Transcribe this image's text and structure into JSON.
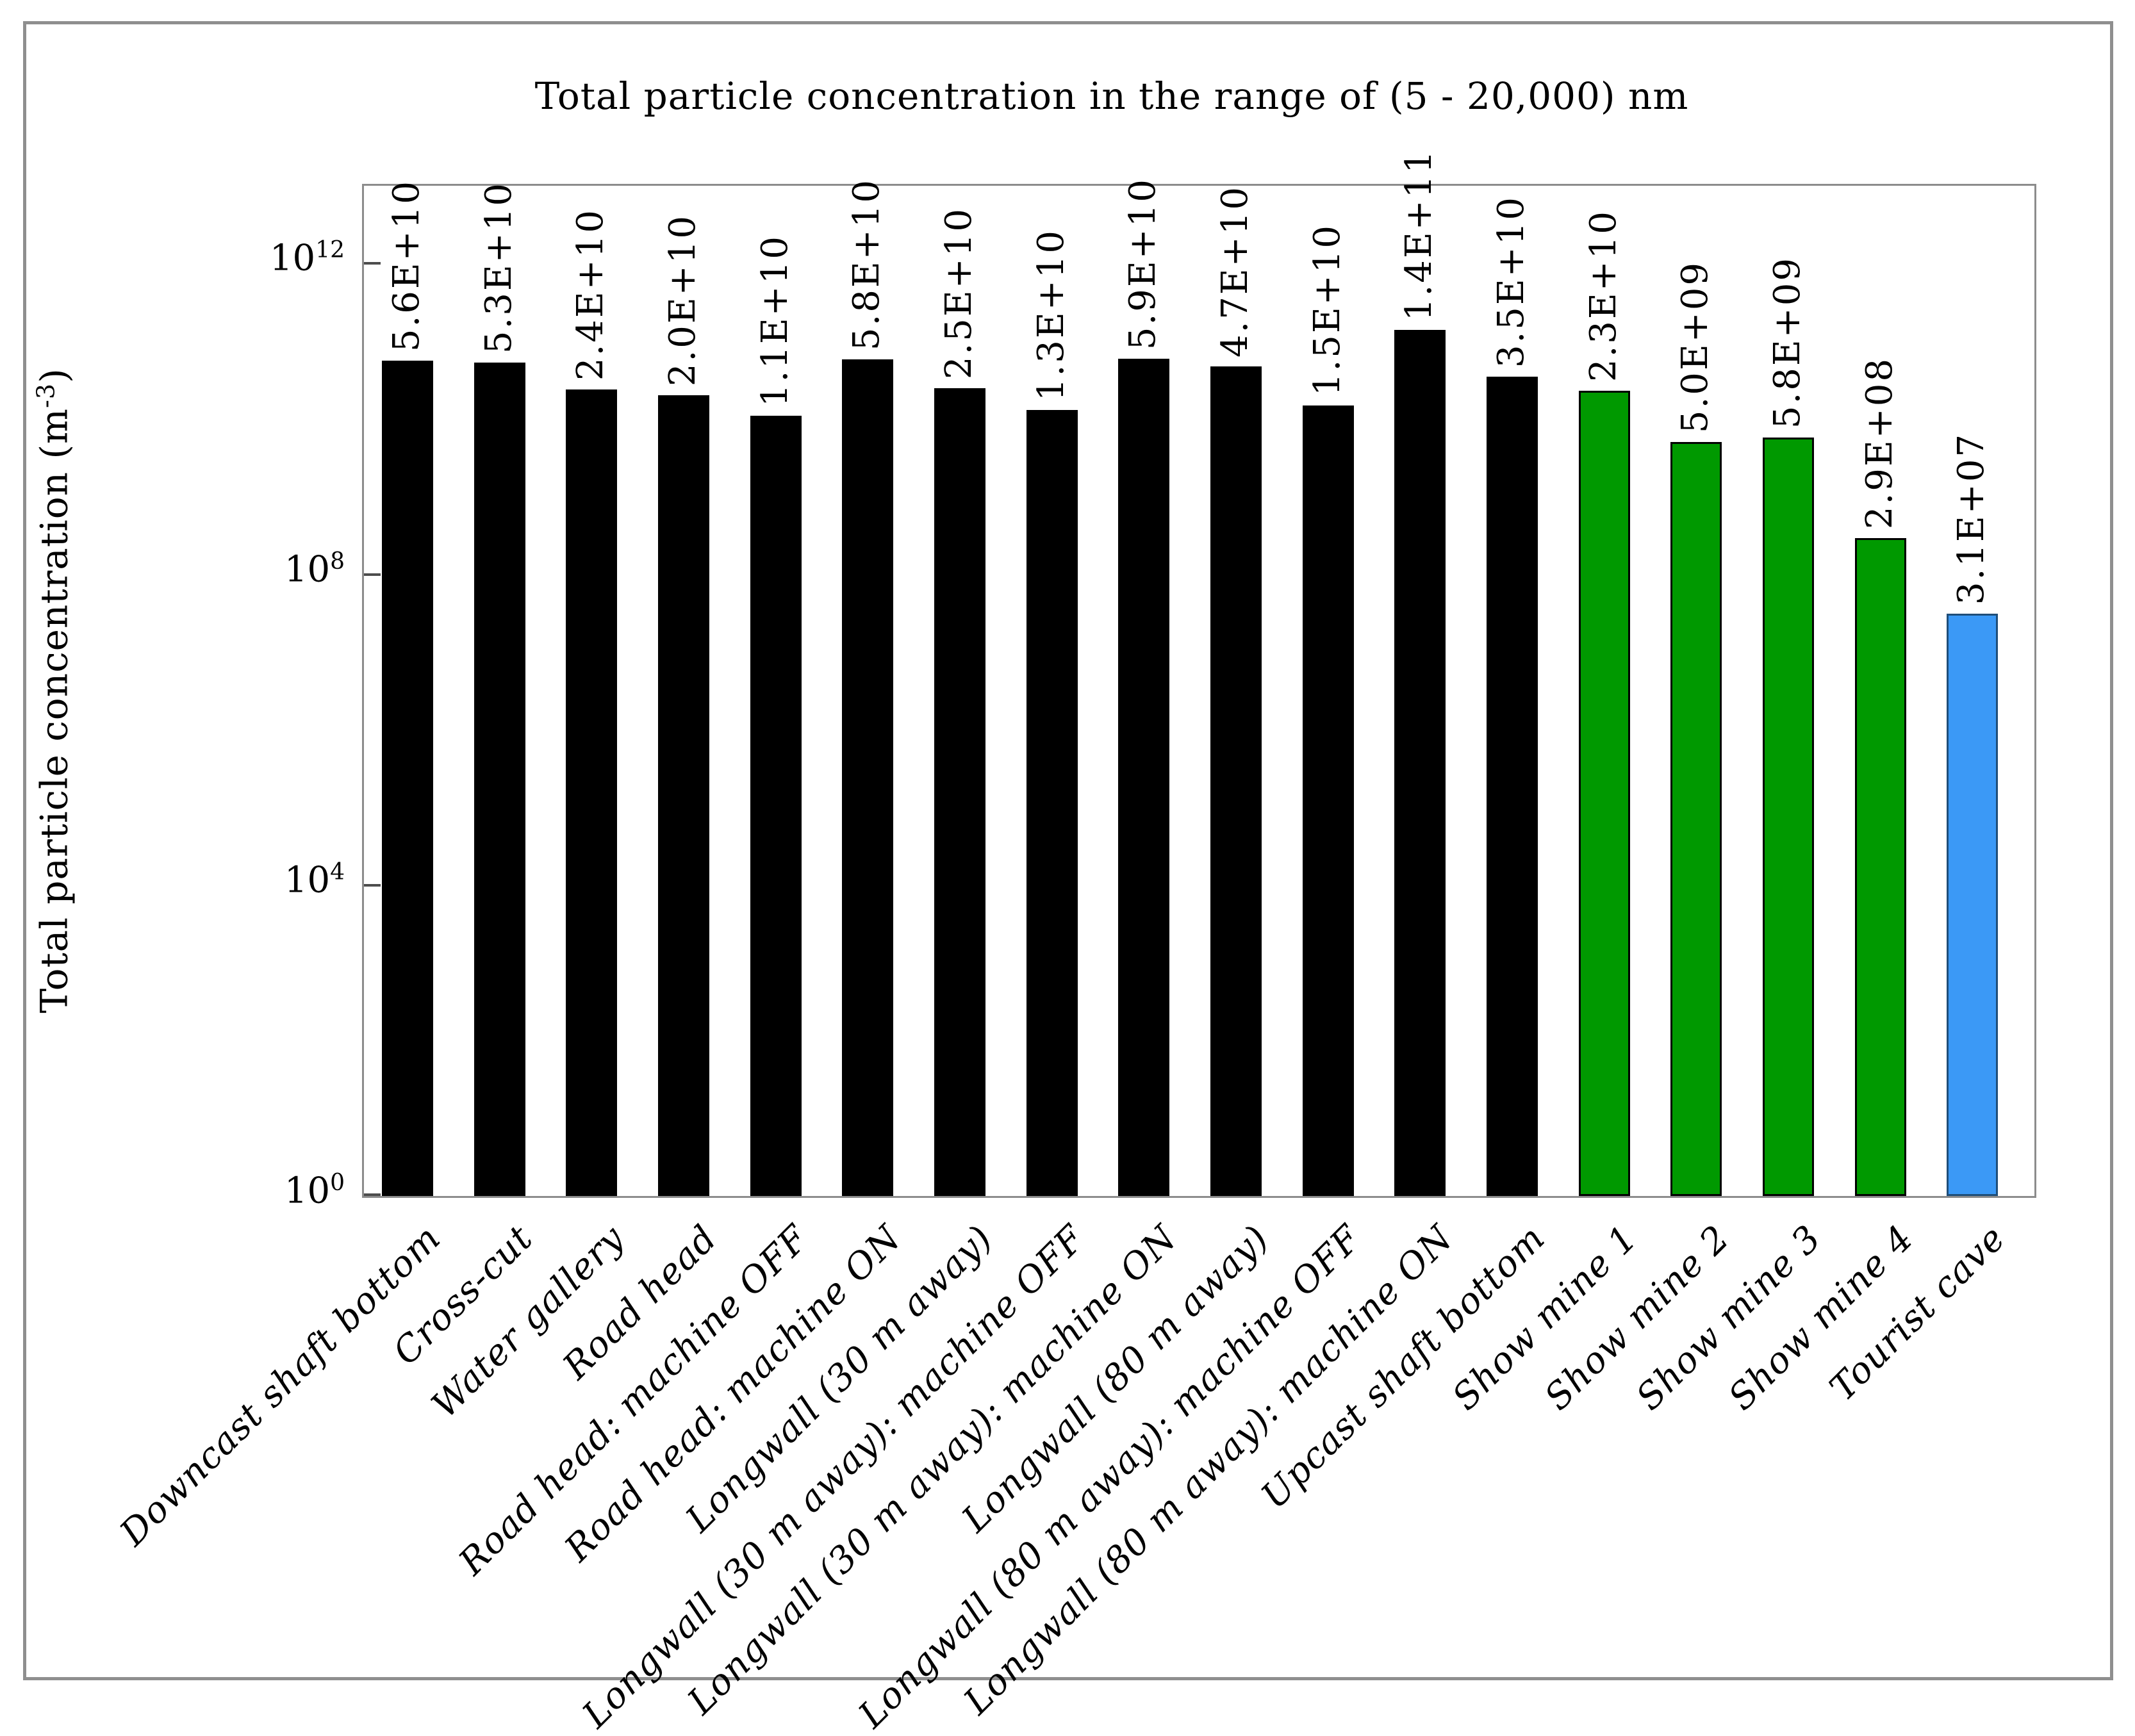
{
  "figure": {
    "background": "#ffffff",
    "frame_color": "#8f8f8f",
    "axis_color": "#8c8c8c",
    "tick_color": "#4d4d4d"
  },
  "chart_data": {
    "type": "bar",
    "title": "Total particle concentration in the range of (5 - 20,000) nm",
    "ylabel": "Total particle concentration (m-3)",
    "ylabel_parts": {
      "prefix": "Total particle concentration (m",
      "sup": "-3",
      "suffix": ")"
    },
    "xlabel": "",
    "grid": false,
    "legend": null,
    "yaxis": {
      "scale": "log",
      "min": 1,
      "max": 10000000000000.0,
      "max_exp": 13,
      "tick_base": "10",
      "tick_exps": [
        12,
        8,
        4,
        0
      ]
    },
    "categories": [
      "Downcast shaft bottom",
      "Cross-cut",
      "Water gallery",
      "Road head",
      "Road head: machine OFF",
      "Road head: machine ON",
      "Longwall (30 m away)",
      "Longwall (30 m away): machine OFF",
      "Longwall (30 m away): machine ON",
      "Longwall (80 m away)",
      "Longwall (80 m away): machine OFF",
      "Longwall (80 m away): machine ON",
      "Upcast shaft bottom",
      "Show mine 1",
      "Show mine 2",
      "Show mine 3",
      "Show mine 4",
      "Tourist cave"
    ],
    "values": [
      56000000000.0,
      53000000000.0,
      24000000000.0,
      20000000000.0,
      11000000000.0,
      58000000000.0,
      25000000000.0,
      13000000000.0,
      59000000000.0,
      47000000000.0,
      15000000000.0,
      140000000000.0,
      35000000000.0,
      23000000000.0,
      5000000000.0,
      5800000000.0,
      290000000.0,
      31000000.0
    ],
    "value_labels": [
      "5.6E+10",
      "5.3E+10",
      "2.4E+10",
      "2.0E+10",
      "1.1E+10",
      "5.8E+10",
      "2.5E+10",
      "1.3E+10",
      "5.9E+10",
      "4.7E+10",
      "1.5E+10",
      "1.4E+11",
      "3.5E+10",
      "2.3E+10",
      "5.0E+09",
      "5.8E+09",
      "2.9E+08",
      "3.1E+07"
    ],
    "bar_colors": [
      "black",
      "black",
      "black",
      "black",
      "black",
      "black",
      "black",
      "black",
      "black",
      "black",
      "black",
      "black",
      "black",
      "green",
      "green",
      "green",
      "green",
      "blue"
    ],
    "palette": {
      "black": {
        "fill": "#000000",
        "border": "#000000"
      },
      "green": {
        "fill": "#009900",
        "border": "#000000"
      },
      "blue": {
        "fill": "#3B99F6",
        "border": "#1F4E79"
      }
    }
  }
}
